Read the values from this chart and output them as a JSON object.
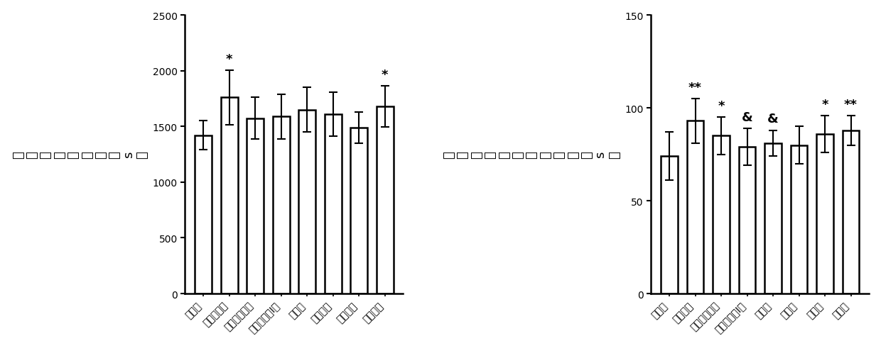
{
  "left_chart": {
    "ylabel_chars": [
      "耐",
      "缺",
      "氧",
      "存",
      "活",
      "时",
      "间",
      "（",
      "s",
      "）"
    ],
    "categories": [
      "空白组",
      "尼莫地平组",
      "党参总皂苷组",
      "洋川芎内酯I组",
      "冰片组",
      "低剂量组",
      "中剂量组",
      "高剂量组"
    ],
    "values": [
      1420,
      1760,
      1575,
      1590,
      1650,
      1610,
      1490,
      1680
    ],
    "errors": [
      130,
      245,
      190,
      200,
      200,
      195,
      140,
      185
    ],
    "sig_labels": [
      "",
      "*",
      "",
      "",
      "",
      "",
      "",
      "*"
    ],
    "ylim": [
      0,
      2500
    ],
    "yticks": [
      0,
      500,
      1000,
      1500,
      2000,
      2500
    ]
  },
  "right_chart": {
    "ylabel_chars": [
      "不",
      "完",
      "全",
      "脑",
      "缺",
      "血",
      "存",
      "活",
      "时",
      "间",
      "（",
      "s",
      "）"
    ],
    "categories": [
      "空白组",
      "尼莫地平",
      "党参总皂苷组",
      "洋川芎内酯I组",
      "冰片组",
      "低剂量",
      "中剂量",
      "高剂量"
    ],
    "values": [
      74,
      93,
      85,
      79,
      81,
      80,
      86,
      88
    ],
    "errors": [
      13,
      12,
      10,
      10,
      7,
      10,
      10,
      8
    ],
    "sig_labels": [
      "",
      "**",
      "*",
      "&",
      "&",
      "",
      "*",
      "**"
    ],
    "ylim": [
      0,
      150
    ],
    "yticks": [
      0,
      50,
      100,
      150
    ]
  },
  "bar_color": "white",
  "bar_edgecolor": "black",
  "bar_linewidth": 1.8,
  "error_capsize": 4,
  "error_linewidth": 1.5,
  "sig_fontsize": 13,
  "tick_fontsize": 10,
  "ylabel_fontsize": 13,
  "xlabel_fontsize": 10,
  "background_color": "white"
}
